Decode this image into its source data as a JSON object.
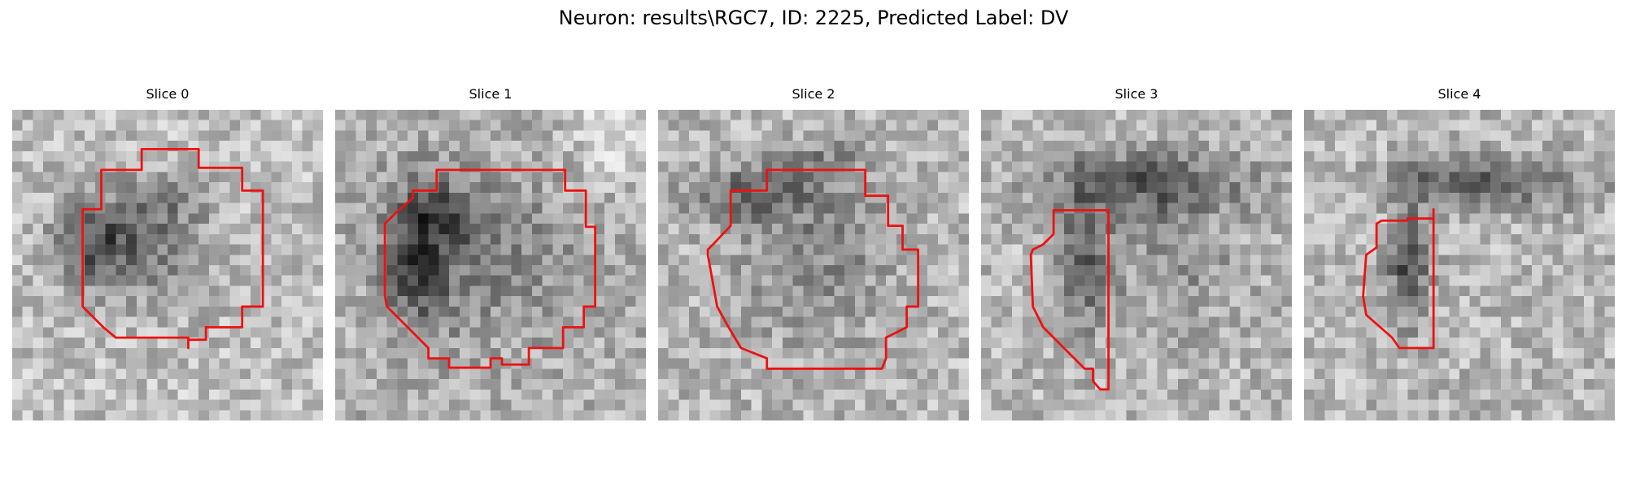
{
  "title": "Neuron: results\\RGC7, ID: 2225, Predicted Label: DV",
  "colors": {
    "contour": "#ee1111",
    "background": "#ffffff"
  },
  "panels": [
    {
      "title": "Slice 0",
      "description": "grayscale pixelated micrograph slice with red segmentation contour around a roughly circular neuron"
    },
    {
      "title": "Slice 1",
      "description": "grayscale pixelated micrograph slice with red segmentation contour around a larger round neuron"
    },
    {
      "title": "Slice 2",
      "description": "grayscale pixelated micrograph slice with red segmentation contour around a roughly circular neuron"
    },
    {
      "title": "Slice 3",
      "description": "grayscale pixelated micrograph slice with red segmentation contour around an elongated vertical region"
    },
    {
      "title": "Slice 4",
      "description": "grayscale pixelated micrograph slice with red segmentation contour around a narrow vertical region"
    }
  ]
}
